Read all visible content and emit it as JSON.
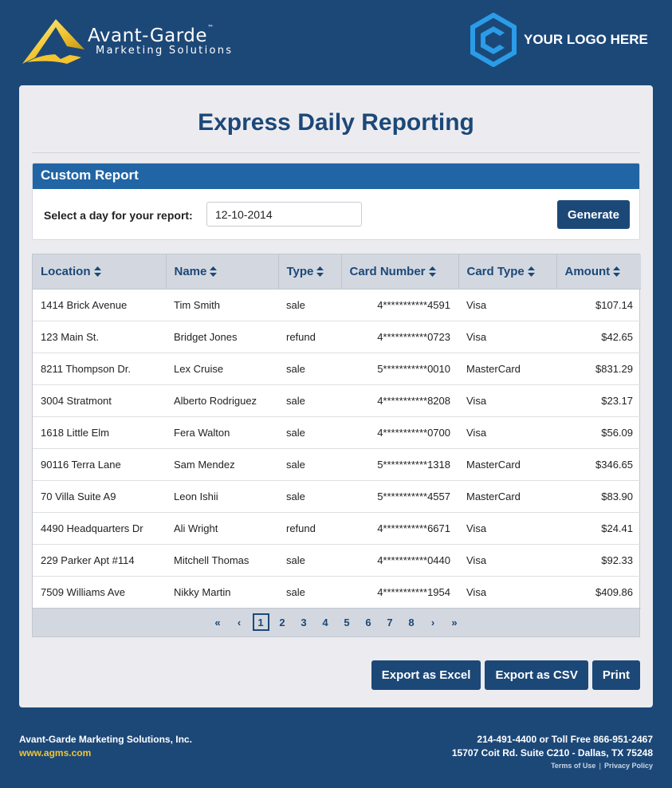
{
  "brand": {
    "name": "Avant-Garde",
    "trademark": "™",
    "tagline": "Marketing Solutions",
    "colors": {
      "gold": "#f2c530",
      "navy": "#1c4878"
    }
  },
  "partner_logo": {
    "text": "YOUR LOGO HERE",
    "icon": "hexagon-c-icon",
    "color": "#2a9ce8"
  },
  "page": {
    "title": "Express Daily Reporting"
  },
  "custom_report": {
    "heading": "Custom Report",
    "date_label": "Select a day for your report:",
    "date_value": "12-10-2014",
    "generate_label": "Generate"
  },
  "table": {
    "columns": [
      "Location",
      "Name",
      "Type",
      "Card Number",
      "Card Type",
      "Amount"
    ],
    "rows": [
      [
        "1414 Brick Avenue",
        "Tim Smith",
        "sale",
        "4***********4591",
        "Visa",
        "$107.14"
      ],
      [
        "123 Main St.",
        "Bridget Jones",
        "refund",
        "4***********0723",
        "Visa",
        "$42.65"
      ],
      [
        "8211 Thompson Dr.",
        "Lex Cruise",
        "sale",
        "5***********0010",
        "MasterCard",
        "$831.29"
      ],
      [
        "3004 Stratmont",
        "Alberto Rodriguez",
        "sale",
        "4***********8208",
        "Visa",
        "$23.17"
      ],
      [
        "1618 Little Elm",
        "Fera Walton",
        "sale",
        "4***********0700",
        "Visa",
        "$56.09"
      ],
      [
        "90116 Terra Lane",
        "Sam Mendez",
        "sale",
        "5***********1318",
        "MasterCard",
        "$346.65"
      ],
      [
        "70 Villa Suite A9",
        "Leon Ishii",
        "sale",
        "5***********4557",
        "MasterCard",
        "$83.90"
      ],
      [
        "4490 Headquarters Dr",
        "Ali Wright",
        "refund",
        "4***********6671",
        "Visa",
        "$24.41"
      ],
      [
        "229 Parker Apt #114",
        "Mitchell Thomas",
        "sale",
        "4***********0440",
        "Visa",
        "$92.33"
      ],
      [
        "7509 Williams Ave",
        "Nikky Martin",
        "sale",
        "4***********1954",
        "Visa",
        "$409.86"
      ]
    ]
  },
  "pagination": {
    "first": "«",
    "prev": "‹",
    "pages": [
      "1",
      "2",
      "3",
      "4",
      "5",
      "6",
      "7",
      "8"
    ],
    "current": "1",
    "next": "›",
    "last": "»"
  },
  "actions": {
    "export_excel": "Export as Excel",
    "export_csv": "Export as CSV",
    "print": "Print"
  },
  "footer": {
    "company": "Avant-Garde Marketing Solutions, Inc.",
    "url": "www.agms.com",
    "phone": "214-491-4400 or Toll Free 866-951-2467",
    "address": "15707 Coit Rd. Suite C210 - Dallas, TX 75248",
    "terms": "Terms of Use",
    "separator": "|",
    "privacy": "Privacy Policy"
  }
}
